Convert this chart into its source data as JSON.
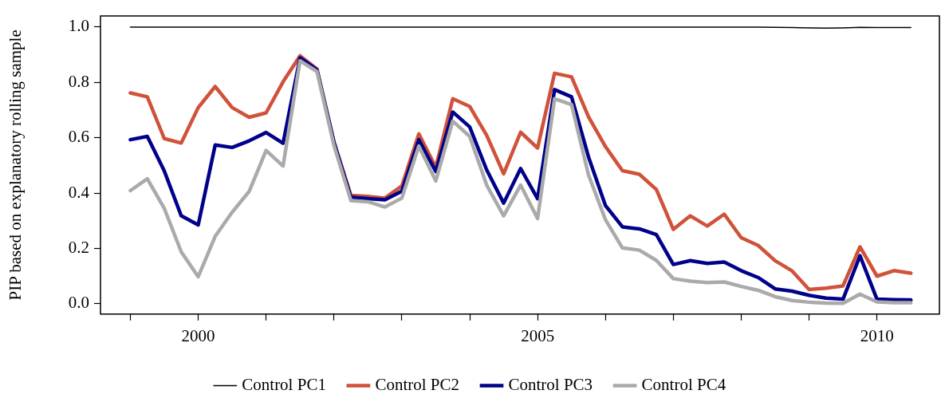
{
  "chart_data": {
    "type": "line",
    "ylabel": "PIP based on explanatory rolling sample",
    "x": [
      1999,
      1999.25,
      1999.5,
      1999.75,
      2000,
      2000.25,
      2000.5,
      2000.75,
      2001,
      2001.25,
      2001.5,
      2001.75,
      2002,
      2002.25,
      2002.5,
      2002.75,
      2003,
      2003.25,
      2003.5,
      2003.75,
      2004,
      2004.25,
      2004.5,
      2004.75,
      2005,
      2005.25,
      2005.5,
      2005.75,
      2006,
      2006.25,
      2006.5,
      2006.75,
      2007,
      2007.25,
      2007.5,
      2007.75,
      2008,
      2008.25,
      2008.5,
      2008.75,
      2009,
      2009.25,
      2009.5,
      2009.75,
      2010,
      2010.25,
      2010.5
    ],
    "series": [
      {
        "name": "Control PC1",
        "color": "#000000",
        "values": [
          1,
          1,
          1,
          1,
          1,
          1,
          1,
          1,
          1,
          1,
          1,
          1,
          1,
          1,
          1,
          1,
          1,
          1,
          1,
          1,
          1,
          1,
          1,
          1,
          1,
          1,
          1,
          1,
          1,
          1,
          1,
          1,
          1,
          1,
          1,
          1,
          1,
          1,
          0.999,
          0.998,
          0.997,
          0.996,
          0.997,
          0.999,
          0.998,
          0.998,
          0.998
        ]
      },
      {
        "name": "Control PC2",
        "color": "#d0523a",
        "values": [
          0.762,
          0.748,
          0.597,
          0.581,
          0.709,
          0.785,
          0.709,
          0.674,
          0.69,
          0.802,
          0.896,
          0.848,
          0.585,
          0.392,
          0.388,
          0.382,
          0.426,
          0.614,
          0.493,
          0.741,
          0.713,
          0.609,
          0.47,
          0.62,
          0.563,
          0.833,
          0.82,
          0.676,
          0.568,
          0.481,
          0.468,
          0.413,
          0.269,
          0.318,
          0.281,
          0.324,
          0.239,
          0.211,
          0.156,
          0.119,
          0.052,
          0.057,
          0.065,
          0.206,
          0.1,
          0.12,
          0.111
        ]
      },
      {
        "name": "Control PC3",
        "color": "#00008b",
        "values": [
          0.593,
          0.605,
          0.48,
          0.318,
          0.285,
          0.574,
          0.565,
          0.589,
          0.619,
          0.58,
          0.889,
          0.845,
          0.583,
          0.385,
          0.38,
          0.376,
          0.407,
          0.593,
          0.478,
          0.693,
          0.639,
          0.484,
          0.364,
          0.489,
          0.38,
          0.774,
          0.748,
          0.531,
          0.355,
          0.278,
          0.271,
          0.25,
          0.142,
          0.156,
          0.146,
          0.151,
          0.12,
          0.095,
          0.054,
          0.046,
          0.031,
          0.021,
          0.017,
          0.174,
          0.017,
          0.015,
          0.014
        ]
      },
      {
        "name": "Control PC4",
        "color": "#aaaaaa",
        "values": [
          0.409,
          0.452,
          0.345,
          0.188,
          0.098,
          0.244,
          0.331,
          0.406,
          0.554,
          0.498,
          0.878,
          0.839,
          0.572,
          0.373,
          0.369,
          0.35,
          0.382,
          0.57,
          0.444,
          0.66,
          0.605,
          0.429,
          0.318,
          0.429,
          0.308,
          0.741,
          0.72,
          0.466,
          0.304,
          0.202,
          0.194,
          0.157,
          0.091,
          0.082,
          0.077,
          0.079,
          0.063,
          0.049,
          0.026,
          0.012,
          0.006,
          0.003,
          0.002,
          0.035,
          0.007,
          0.004,
          0.004
        ]
      }
    ],
    "xlim": [
      1998.56,
      2010.92
    ],
    "xticks": [
      {
        "value": 1999,
        "label": null
      },
      2000,
      {
        "value": 2001,
        "label": null
      },
      {
        "value": 2002,
        "label": null
      },
      {
        "value": 2003,
        "label": null
      },
      {
        "value": 2004,
        "label": null
      },
      2005,
      {
        "value": 2006,
        "label": null
      },
      {
        "value": 2007,
        "label": null
      },
      {
        "value": 2008,
        "label": null
      },
      {
        "value": 2009,
        "label": null
      },
      2010
    ],
    "ylim": [
      -0.037,
      1.04
    ],
    "yticks": [
      {
        "value": 0,
        "label": "0.0"
      },
      {
        "value": 0.2,
        "label": "0.2"
      },
      {
        "value": 0.4,
        "label": "0.4"
      },
      {
        "value": 0.6,
        "label": "0.6"
      },
      {
        "value": 0.8,
        "label": "0.8"
      },
      {
        "value": 1,
        "label": "1.0"
      }
    ],
    "legend": "bottom",
    "marker": "none",
    "line_style": "solid"
  }
}
